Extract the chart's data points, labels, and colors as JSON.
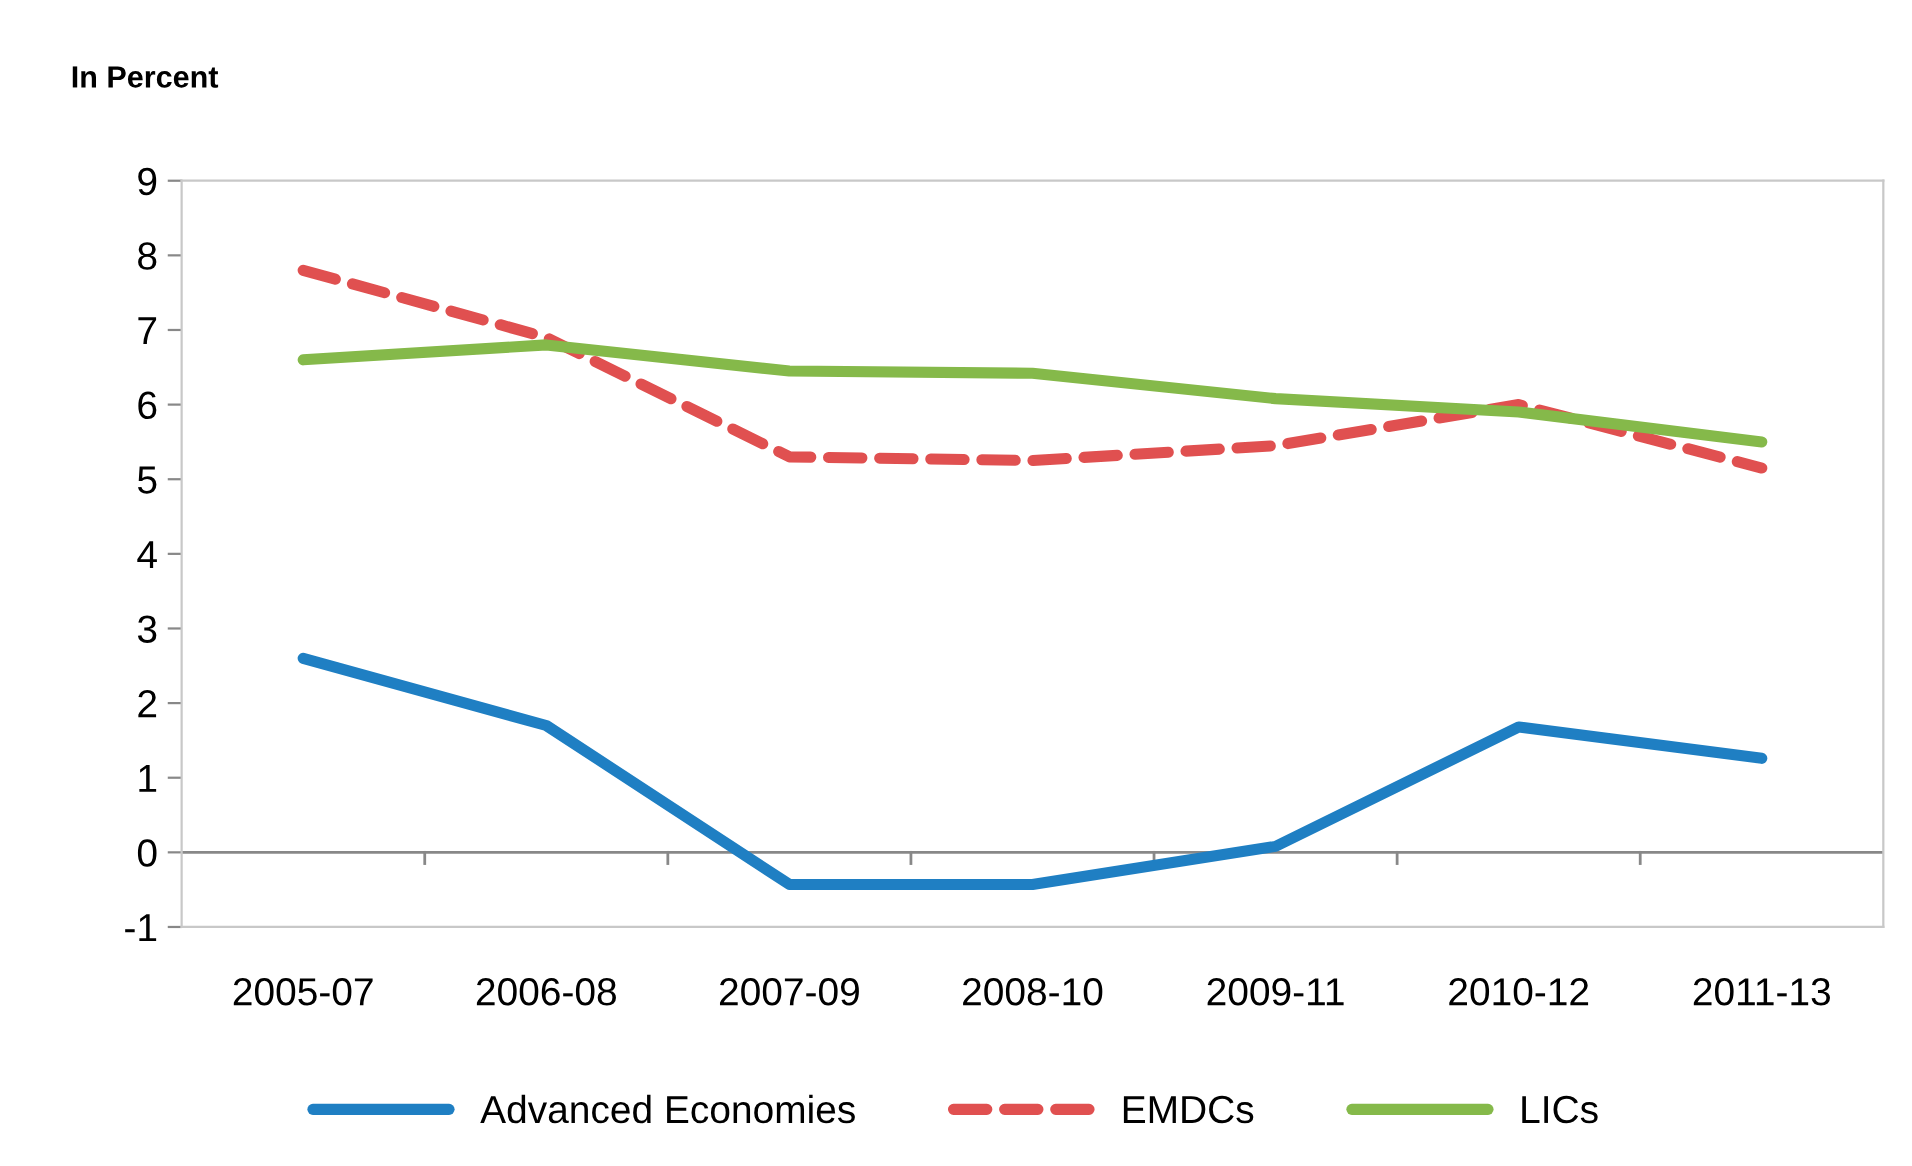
{
  "chart_data": {
    "type": "line",
    "ylabel": "In Percent",
    "categories": [
      "2005-07",
      "2006-08",
      "2007-09",
      "2008-10",
      "2009-11",
      "2010-12",
      "2011-13"
    ],
    "series": [
      {
        "name": "Advanced Economies",
        "color": "#1f7fc3",
        "line_style": "solid",
        "values": [
          2.6,
          1.7,
          -0.43,
          -0.43,
          0.08,
          1.68,
          1.26
        ]
      },
      {
        "name": "EMDCs",
        "color": "#e05050",
        "line_style": "dashed",
        "values": [
          7.8,
          6.9,
          5.3,
          5.25,
          5.45,
          6.0,
          5.15
        ]
      },
      {
        "name": "LICs",
        "color": "#85b94a",
        "line_style": "solid",
        "values": [
          6.6,
          6.8,
          6.45,
          6.42,
          6.08,
          5.9,
          5.5
        ]
      }
    ],
    "ylim": [
      -1,
      9
    ],
    "yticks": [
      -1,
      0,
      1,
      2,
      3,
      4,
      5,
      6,
      7,
      8,
      9
    ],
    "grid": false,
    "ref_lines": [
      {
        "axis": "y",
        "value": 0,
        "color": "#888888"
      }
    ],
    "legend": "bottom",
    "marker": "none"
  }
}
